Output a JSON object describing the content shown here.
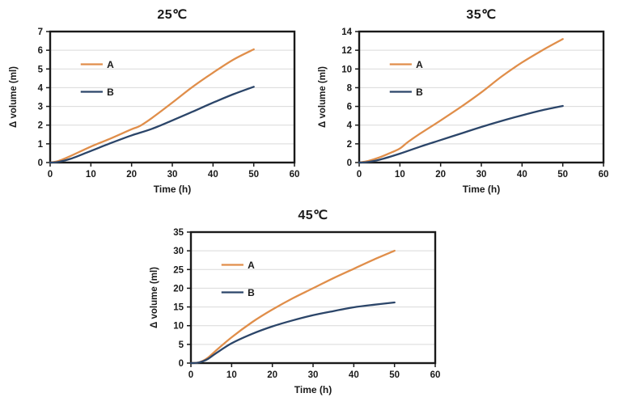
{
  "colors": {
    "series_a": "#E08E4A",
    "series_b": "#2B4569",
    "gridline": "#D9D9D9",
    "axis": "#1A1A1A",
    "background": "#FFFFFF"
  },
  "chart_data": [
    {
      "type": "line",
      "title": "25℃",
      "xlabel": "Time (h)",
      "ylabel": "Δ volume (ml)",
      "xlim": [
        0,
        60
      ],
      "ylim": [
        0,
        7
      ],
      "xticks": [
        0,
        10,
        20,
        30,
        40,
        50,
        60
      ],
      "yticks": [
        0,
        1,
        2,
        3,
        4,
        5,
        6,
        7
      ],
      "grid": "horizontal",
      "legend_position": "upper-left-inside",
      "series": [
        {
          "name": "A",
          "color": "#E08E4A",
          "x": [
            0,
            2,
            5,
            10,
            15,
            20,
            22,
            25,
            30,
            35,
            40,
            45,
            50
          ],
          "y": [
            0,
            0.08,
            0.35,
            0.85,
            1.3,
            1.78,
            1.95,
            2.38,
            3.2,
            4.05,
            4.8,
            5.5,
            6.05
          ]
        },
        {
          "name": "B",
          "color": "#2B4569",
          "x": [
            0,
            2,
            5,
            10,
            15,
            20,
            25,
            30,
            35,
            40,
            45,
            50
          ],
          "y": [
            0,
            0.03,
            0.2,
            0.62,
            1.05,
            1.45,
            1.8,
            2.25,
            2.72,
            3.2,
            3.65,
            4.05
          ]
        }
      ]
    },
    {
      "type": "line",
      "title": "35℃",
      "xlabel": "Time (h)",
      "ylabel": "Δ volume (ml)",
      "xlim": [
        0,
        60
      ],
      "ylim": [
        0,
        14
      ],
      "xticks": [
        0,
        10,
        20,
        30,
        40,
        50,
        60
      ],
      "yticks": [
        0,
        2,
        4,
        6,
        8,
        10,
        12,
        14
      ],
      "grid": "horizontal",
      "legend_position": "upper-left-inside",
      "series": [
        {
          "name": "A",
          "color": "#E08E4A",
          "x": [
            0,
            2,
            5,
            8,
            10,
            12,
            15,
            20,
            25,
            30,
            35,
            40,
            45,
            50
          ],
          "y": [
            0,
            0.15,
            0.55,
            1.1,
            1.5,
            2.2,
            3.1,
            4.5,
            5.95,
            7.5,
            9.2,
            10.7,
            12.0,
            13.2
          ]
        },
        {
          "name": "B",
          "color": "#2B4569",
          "x": [
            0,
            2,
            5,
            10,
            15,
            20,
            25,
            30,
            35,
            40,
            45,
            50
          ],
          "y": [
            0,
            0.05,
            0.3,
            0.95,
            1.7,
            2.4,
            3.1,
            3.8,
            4.45,
            5.05,
            5.6,
            6.05
          ]
        }
      ]
    },
    {
      "type": "line",
      "title": "45℃",
      "xlabel": "Time (h)",
      "ylabel": "Δ volume (ml)",
      "xlim": [
        0,
        60
      ],
      "ylim": [
        0,
        35
      ],
      "xticks": [
        0,
        10,
        20,
        30,
        40,
        50,
        60
      ],
      "yticks": [
        0,
        5,
        10,
        15,
        20,
        25,
        30,
        35
      ],
      "grid": "horizontal",
      "legend_position": "upper-left-inside",
      "series": [
        {
          "name": "A",
          "color": "#E08E4A",
          "x": [
            0,
            2,
            4,
            6,
            10,
            15,
            20,
            25,
            30,
            35,
            40,
            45,
            50
          ],
          "y": [
            0,
            0.2,
            1.3,
            3.2,
            6.9,
            10.9,
            14.3,
            17.3,
            20.0,
            22.7,
            25.2,
            27.7,
            30.0
          ]
        },
        {
          "name": "B",
          "color": "#2B4569",
          "x": [
            0,
            2,
            4,
            6,
            10,
            15,
            20,
            25,
            30,
            35,
            40,
            45,
            50
          ],
          "y": [
            0,
            0.15,
            1.0,
            2.5,
            5.3,
            7.8,
            9.8,
            11.4,
            12.8,
            13.9,
            14.9,
            15.6,
            16.2
          ]
        }
      ]
    }
  ]
}
